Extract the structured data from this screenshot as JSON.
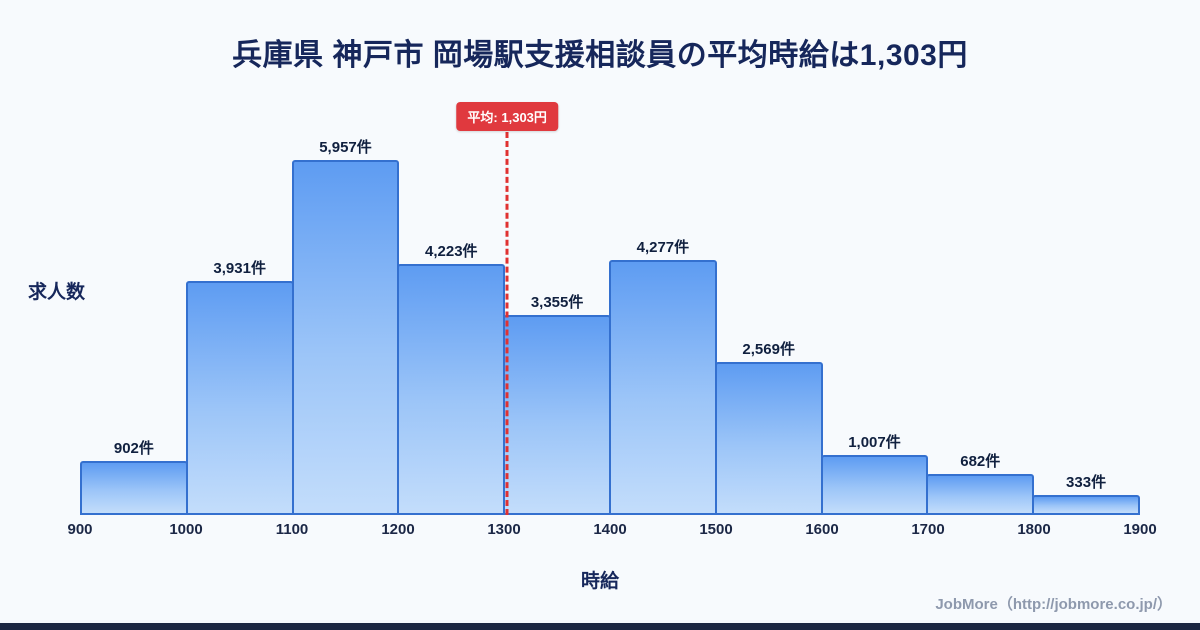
{
  "page": {
    "footer": "JobMore（http://jobmore.co.jp/）"
  },
  "chart_data": {
    "type": "bar",
    "subtype": "histogram",
    "title": "兵庫県 神戸市 岡場駅支援相談員の平均時給は1,303円",
    "xlabel": "時給",
    "ylabel": "求人数",
    "bin_edges": [
      900,
      1000,
      1100,
      1200,
      1300,
      1400,
      1500,
      1600,
      1700,
      1800,
      1900
    ],
    "values": [
      902,
      3931,
      5957,
      4223,
      3355,
      4277,
      2569,
      1007,
      682,
      333
    ],
    "bar_labels": [
      "902件",
      "3,931件",
      "5,957件",
      "4,223件",
      "3,355件",
      "4,277件",
      "2,569件",
      "1,007件",
      "682件",
      "333件"
    ],
    "ylim": [
      0,
      6200
    ],
    "grid": false,
    "legend": "none",
    "average": {
      "value": 1303,
      "label": "平均: 1,303円"
    },
    "colors": {
      "background": "#f7fafd",
      "title": "#16275b",
      "bar_gradient_top": "#5e9cf2",
      "bar_gradient_bottom": "#c3ddfb",
      "bar_border": "#3470cf",
      "average_line": "#e03131",
      "average_badge_bg": "#e0393e",
      "average_badge_text": "#ffffff",
      "tick_text": "#1b2746",
      "footer_text": "#8e99ad",
      "bottom_strip": "#1c2742"
    }
  }
}
